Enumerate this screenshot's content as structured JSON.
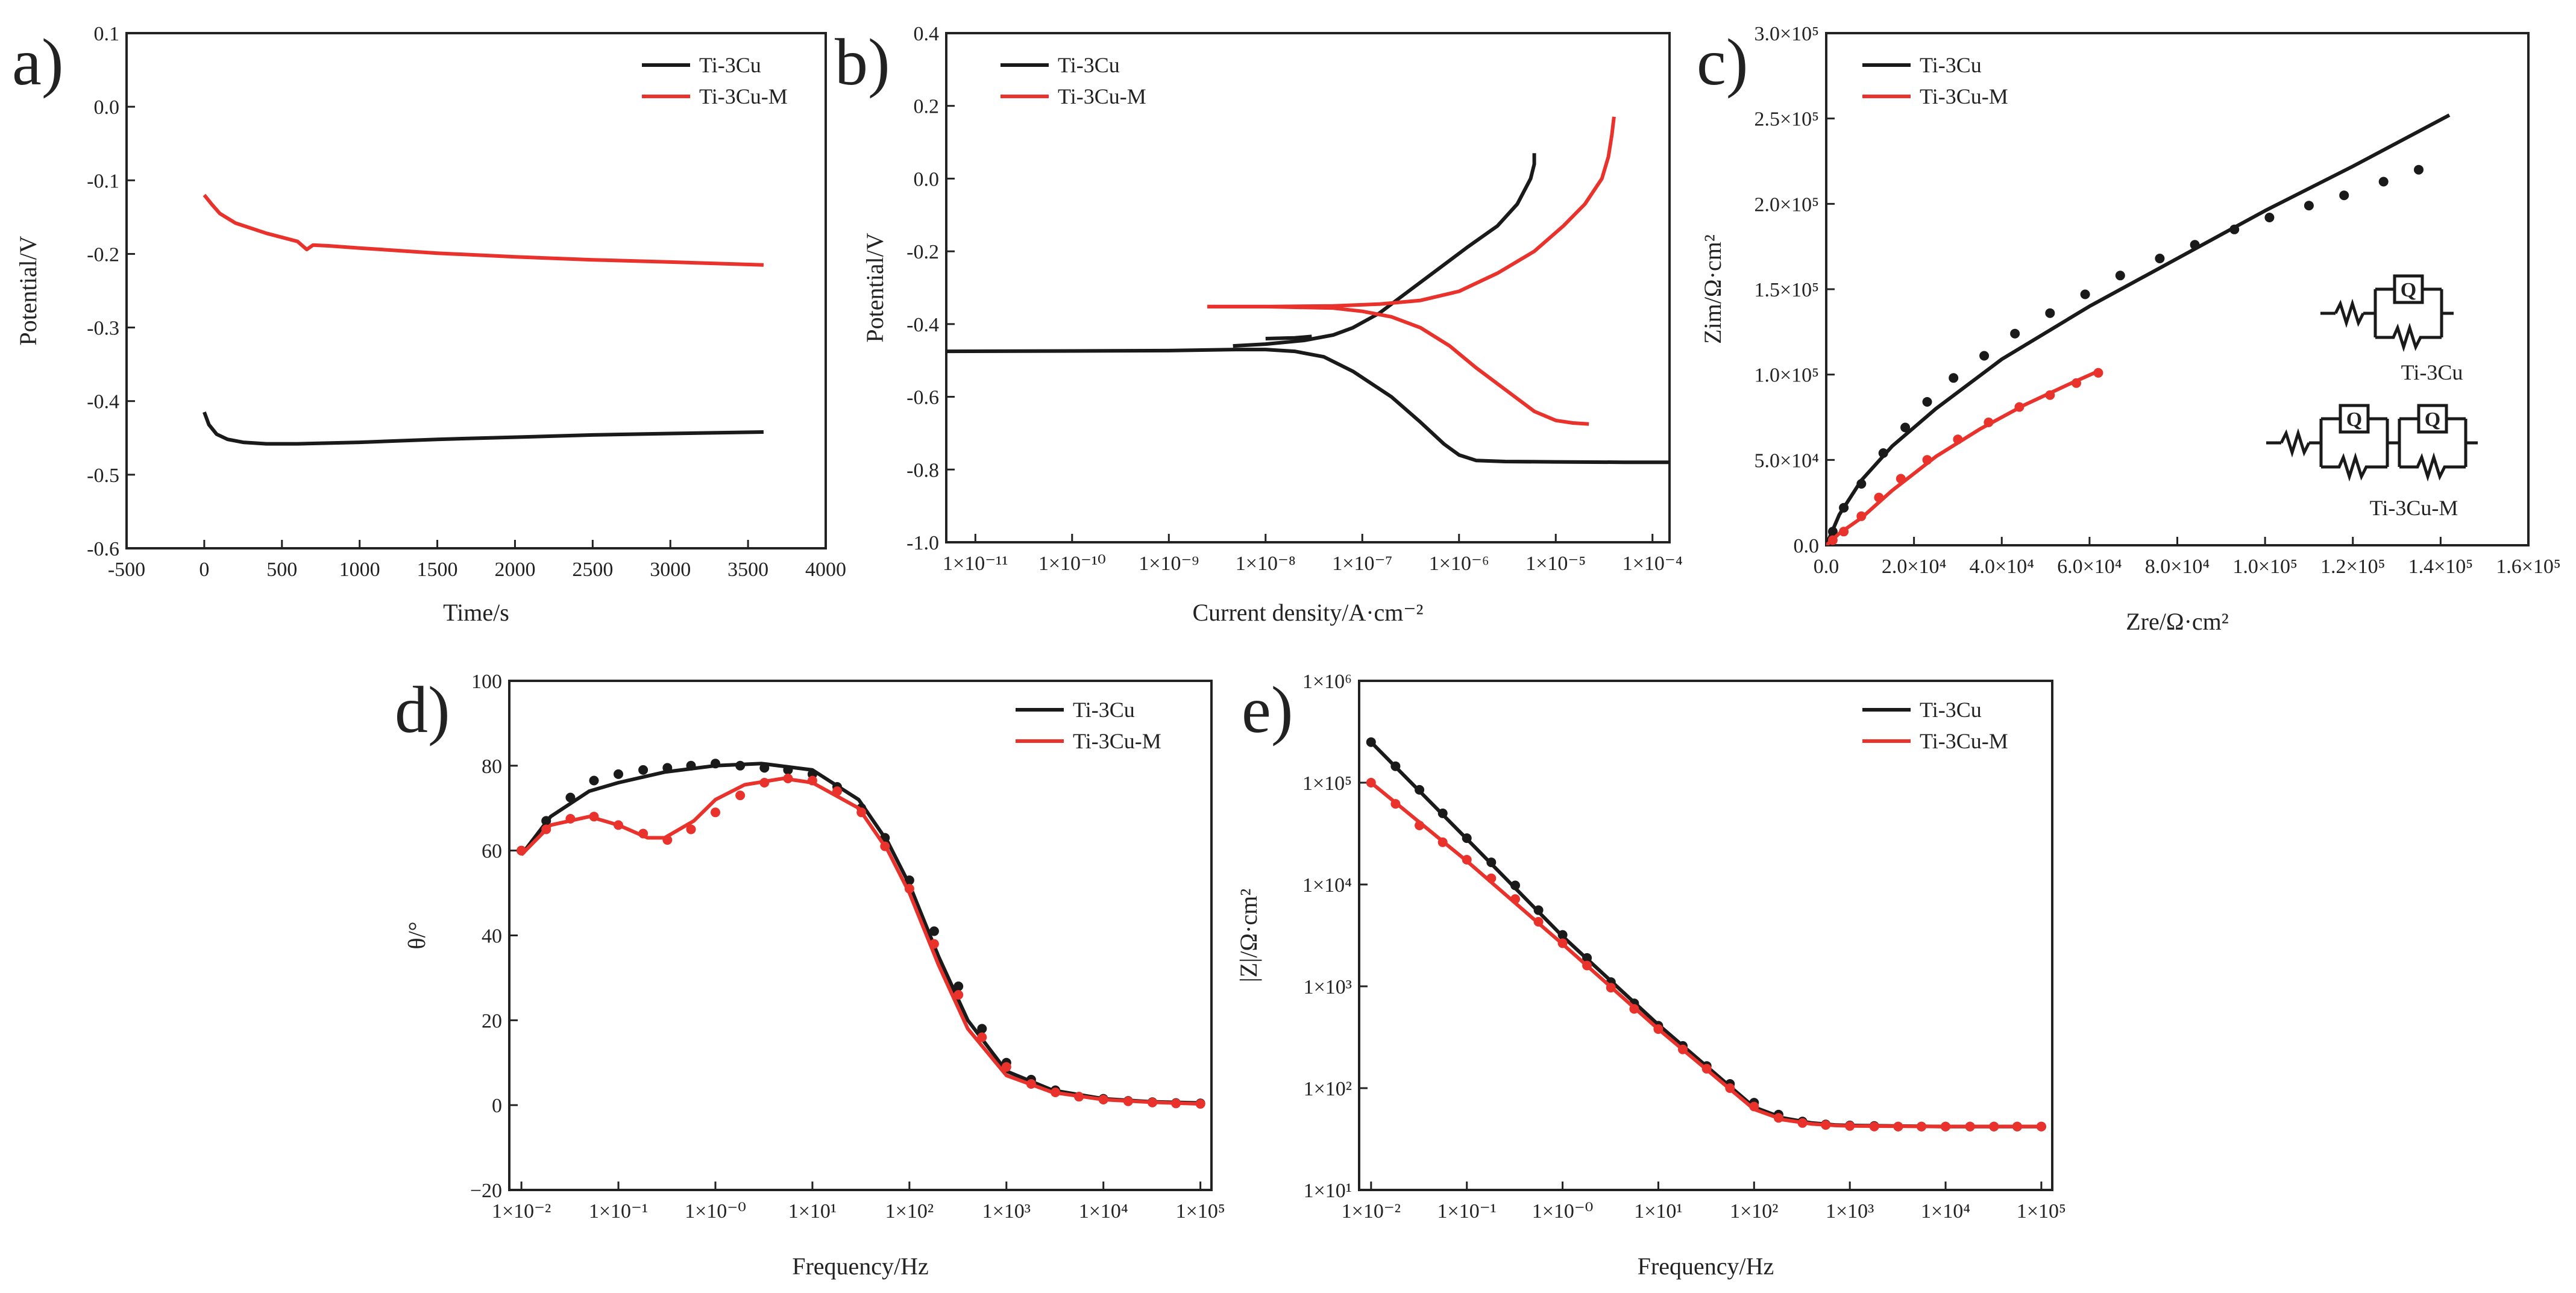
{
  "figure": {
    "colors": {
      "ti3cu": "#1a1a1a",
      "ti3cum": "#e8322b"
    },
    "legend": [
      "Ti-3Cu",
      "Ti-3Cu-M"
    ]
  },
  "chart_data": [
    {
      "id": "a",
      "panel_label": "a)",
      "type": "line",
      "title": "",
      "xlabel": "Time/s",
      "ylabel": "Potential/V",
      "xlim": [
        -500,
        4000
      ],
      "ylim": [
        -0.6,
        0.1
      ],
      "x_ticks": [
        -500,
        0,
        500,
        1000,
        1500,
        2000,
        2500,
        3000,
        3500,
        4000
      ],
      "x_tick_labels": [
        "-500",
        "0",
        "500",
        "1000",
        "1500",
        "2000",
        "2500",
        "3000",
        "3500",
        "4000"
      ],
      "y_ticks": [
        -0.6,
        -0.5,
        -0.4,
        -0.3,
        -0.2,
        -0.1,
        0.0,
        0.1
      ],
      "y_tick_labels": [
        "-0.6",
        "-0.5",
        "-0.4",
        "-0.3",
        "-0.2",
        "-0.1",
        "0.0",
        "0.1"
      ],
      "legend_position": "top-right",
      "series": [
        {
          "name": "Ti-3Cu",
          "style": "line",
          "x": [
            0,
            30,
            80,
            150,
            250,
            400,
            600,
            1000,
            1500,
            2000,
            2500,
            3000,
            3600
          ],
          "y": [
            -0.415,
            -0.432,
            -0.445,
            -0.452,
            -0.456,
            -0.458,
            -0.458,
            -0.456,
            -0.452,
            -0.449,
            -0.446,
            -0.444,
            -0.442
          ]
        },
        {
          "name": "Ti-3Cu-M",
          "style": "line",
          "x": [
            0,
            50,
            100,
            200,
            400,
            600,
            660,
            700,
            800,
            1000,
            1500,
            2000,
            2500,
            3000,
            3600
          ],
          "y": [
            -0.12,
            -0.133,
            -0.145,
            -0.158,
            -0.172,
            -0.183,
            -0.194,
            -0.188,
            -0.189,
            -0.192,
            -0.199,
            -0.204,
            -0.208,
            -0.211,
            -0.215
          ]
        }
      ]
    },
    {
      "id": "b",
      "panel_label": "b)",
      "type": "line",
      "title": "",
      "xlabel": "Current density/A·cm⁻²",
      "ylabel": "Potential/V",
      "x_scale": "log",
      "xlim": [
        5e-12,
        0.00015
      ],
      "ylim": [
        -1.0,
        0.4
      ],
      "x_ticks": [
        1e-11,
        1e-10,
        1e-09,
        1e-08,
        1e-07,
        1e-06,
        1e-05,
        0.0001
      ],
      "x_tick_labels": [
        "1×10⁻¹¹",
        "1×10⁻¹⁰",
        "1×10⁻⁹",
        "1×10⁻⁸",
        "1×10⁻⁷",
        "1×10⁻⁶",
        "1×10⁻⁵",
        "1×10⁻⁴"
      ],
      "y_ticks": [
        -1.0,
        -0.8,
        -0.6,
        -0.4,
        -0.2,
        0.0,
        0.2,
        0.4
      ],
      "y_tick_labels": [
        "-1.0",
        "-0.8",
        "-0.6",
        "-0.4",
        "-0.2",
        "0.0",
        "0.2",
        "0.4"
      ],
      "legend_position": "top-left",
      "series": [
        {
          "name": "Ti-3Cu",
          "style": "line",
          "x": [
            5e-12,
            1e-10,
            1e-09,
            5e-09,
            1e-08,
            2e-08,
            4e-08,
            8e-08,
            2e-07,
            4e-07,
            7e-07,
            1e-06,
            1.5e-06,
            3e-06,
            1e-05,
            5e-05,
            0.00015
          ],
          "y": [
            -0.475,
            -0.474,
            -0.473,
            -0.47,
            -0.47,
            -0.475,
            -0.49,
            -0.53,
            -0.6,
            -0.67,
            -0.73,
            -0.76,
            -0.775,
            -0.778,
            -0.779,
            -0.78,
            -0.78
          ]
        },
        {
          "name": "Ti-3Cu",
          "style": "line",
          "x": [
            4.6e-09,
            1e-08,
            2.5e-08,
            5e-08,
            8e-08,
            1.5e-07,
            3e-07,
            6e-07,
            1.2e-06,
            2.5e-06,
            4e-06,
            5.5e-06,
            6e-06,
            6e-06
          ],
          "y": [
            -0.46,
            -0.455,
            -0.445,
            -0.43,
            -0.41,
            -0.37,
            -0.31,
            -0.25,
            -0.19,
            -0.13,
            -0.07,
            0.0,
            0.04,
            0.07
          ]
        },
        {
          "name": "Ti-3Cu",
          "style": "line",
          "x": [
            1e-08,
            2e-08,
            3e-08
          ],
          "y": [
            -0.44,
            -0.438,
            -0.434
          ]
        },
        {
          "name": "Ti-3Cu-M",
          "style": "line",
          "x": [
            2.5e-09,
            1e-08,
            5e-08,
            1e-07,
            2e-07,
            4e-07,
            8e-07,
            1.5e-06,
            3e-06,
            6e-06,
            1e-05,
            1.5e-05,
            2.2e-05
          ],
          "y": [
            -0.352,
            -0.352,
            -0.356,
            -0.365,
            -0.38,
            -0.41,
            -0.46,
            -0.52,
            -0.58,
            -0.64,
            -0.665,
            -0.672,
            -0.675
          ]
        },
        {
          "name": "Ti-3Cu-M",
          "style": "line",
          "x": [
            2.5e-09,
            1e-08,
            5e-08,
            1.5e-07,
            4e-07,
            1e-06,
            2.5e-06,
            6e-06,
            1.2e-05,
            2e-05,
            3e-05,
            3.5e-05,
            3.8e-05,
            4e-05
          ],
          "y": [
            -0.352,
            -0.352,
            -0.35,
            -0.345,
            -0.335,
            -0.31,
            -0.26,
            -0.2,
            -0.13,
            -0.07,
            0.0,
            0.06,
            0.12,
            0.17
          ]
        }
      ]
    },
    {
      "id": "c",
      "panel_label": "c)",
      "type": "line",
      "title": "",
      "xlabel": "Zre/Ω·cm²",
      "ylabel": "Zim/Ω·cm²",
      "xlim": [
        0,
        160000
      ],
      "ylim": [
        0,
        300000
      ],
      "x_ticks": [
        0,
        20000,
        40000,
        60000,
        80000,
        100000,
        120000,
        140000,
        160000
      ],
      "x_tick_labels": [
        "0.0",
        "2.0×10⁴",
        "4.0×10⁴",
        "6.0×10⁴",
        "8.0×10⁴",
        "1.0×10⁵",
        "1.2×10⁵",
        "1.4×10⁵",
        "1.6×10⁵"
      ],
      "y_ticks": [
        0,
        50000,
        100000,
        150000,
        200000,
        250000,
        300000
      ],
      "y_tick_labels": [
        "0.0",
        "5.0×10⁴",
        "1.0×10⁵",
        "1.5×10⁵",
        "2.0×10⁵",
        "2.5×10⁵",
        "3.0×10⁵"
      ],
      "legend_position": "top-left",
      "equivalent_circuits": [
        "Ti-3Cu",
        "Ti-3Cu-M"
      ],
      "series": [
        {
          "name": "Ti-3Cu",
          "style": "line",
          "x": [
            0,
            3000,
            8000,
            15000,
            25000,
            40000,
            60000,
            80000,
            100000,
            120000,
            142000
          ],
          "y": [
            0,
            18000,
            38000,
            58000,
            80000,
            109000,
            140000,
            168000,
            196000,
            222000,
            252000
          ]
        },
        {
          "name": "Ti-3Cu",
          "style": "markers",
          "x": [
            1500,
            4000,
            8000,
            13000,
            18000,
            23000,
            29000,
            36000,
            43000,
            51000,
            59000,
            67000,
            76000,
            84000,
            93000,
            101000,
            110000,
            118000,
            127000,
            135000
          ],
          "y": [
            8000,
            22000,
            36000,
            54000,
            69000,
            84000,
            98000,
            111000,
            124000,
            136000,
            147000,
            158000,
            168000,
            176000,
            185000,
            192000,
            199000,
            205000,
            213000,
            220000
          ]
        },
        {
          "name": "Ti-3Cu-M",
          "style": "line",
          "x": [
            0,
            3000,
            8000,
            15000,
            25000,
            35000,
            45000,
            55000,
            62000
          ],
          "y": [
            0,
            7000,
            16000,
            32000,
            52000,
            68000,
            82000,
            94000,
            102000
          ]
        },
        {
          "name": "Ti-3Cu-M",
          "style": "markers",
          "x": [
            1500,
            4000,
            8000,
            12000,
            17000,
            23000,
            30000,
            37000,
            44000,
            51000,
            57000,
            62000
          ],
          "y": [
            3000,
            8000,
            17000,
            28000,
            39000,
            50000,
            62000,
            72000,
            81000,
            88000,
            95000,
            101000
          ]
        }
      ]
    },
    {
      "id": "d",
      "panel_label": "d)",
      "type": "line",
      "title": "",
      "xlabel": "Frequency/Hz",
      "ylabel": "θ/°",
      "x_scale": "log",
      "xlim": [
        0.0075,
        130000
      ],
      "ylim": [
        -20,
        100
      ],
      "x_ticks": [
        0.01,
        0.1,
        1,
        10,
        100,
        1000,
        10000,
        100000
      ],
      "x_tick_labels": [
        "1×10⁻²",
        "1×10⁻¹",
        "1×10⁻⁰",
        "1×10¹",
        "1×10²",
        "1×10³",
        "1×10⁴",
        "1×10⁵"
      ],
      "y_ticks": [
        -20,
        0,
        20,
        40,
        60,
        80,
        100
      ],
      "y_tick_labels": [
        "−20",
        "0",
        "20",
        "40",
        "60",
        "80",
        "100"
      ],
      "legend_position": "top-right",
      "series": [
        {
          "name": "Ti-3Cu",
          "style": "line",
          "x": [
            0.01,
            0.02,
            0.05,
            0.1,
            0.3,
            1,
            3,
            10,
            30,
            60,
            100,
            200,
            400,
            1000,
            3000,
            10000,
            30000,
            100000
          ],
          "y": [
            59,
            68,
            74,
            76,
            78.5,
            80,
            80.5,
            79,
            72,
            62,
            52,
            35,
            20,
            8,
            3.5,
            1.5,
            0.8,
            0.5
          ]
        },
        {
          "name": "Ti-3Cu",
          "style": "markers",
          "x": [
            0.01,
            0.018,
            0.032,
            0.056,
            0.1,
            0.18,
            0.32,
            0.56,
            1,
            1.8,
            3.2,
            5.6,
            10,
            18,
            32,
            56,
            100,
            180,
            320,
            560,
            1000,
            1800,
            3200,
            5600,
            10000,
            18000,
            32000,
            56000,
            100000
          ],
          "y": [
            60,
            67,
            72.5,
            76.5,
            78,
            79,
            79.5,
            80,
            80.5,
            80,
            79.5,
            79,
            78,
            75,
            70,
            63,
            53,
            41,
            28,
            18,
            10,
            6,
            3.5,
            2,
            1.5,
            1,
            0.7,
            0.5,
            0.4
          ]
        },
        {
          "name": "Ti-3Cu-M",
          "style": "line",
          "x": [
            0.01,
            0.02,
            0.05,
            0.1,
            0.2,
            0.3,
            0.6,
            1,
            2,
            5,
            10,
            30,
            60,
            100,
            200,
            400,
            1000,
            3000,
            10000,
            30000,
            100000
          ],
          "y": [
            59,
            66,
            68,
            66,
            63,
            63,
            67,
            72,
            75.5,
            77,
            76,
            70,
            60,
            50,
            33,
            18,
            7,
            3,
            1.3,
            0.7,
            0.3
          ]
        },
        {
          "name": "Ti-3Cu-M",
          "style": "markers",
          "x": [
            0.01,
            0.018,
            0.032,
            0.056,
            0.1,
            0.18,
            0.32,
            0.56,
            1,
            1.8,
            3.2,
            5.6,
            10,
            18,
            32,
            56,
            100,
            180,
            320,
            560,
            1000,
            1800,
            3200,
            5600,
            10000,
            18000,
            32000,
            56000,
            100000
          ],
          "y": [
            60,
            65,
            67.5,
            68,
            66,
            64,
            62.5,
            65,
            69,
            73,
            76,
            77,
            76.5,
            74,
            69,
            61,
            51,
            38,
            26,
            16,
            9,
            5,
            3,
            2,
            1.3,
            0.9,
            0.6,
            0.4,
            0.3
          ]
        }
      ]
    },
    {
      "id": "e",
      "panel_label": "e)",
      "type": "line",
      "title": "",
      "xlabel": "Frequency/Hz",
      "ylabel": "|Z|/Ω·cm²",
      "x_scale": "log",
      "y_scale": "log",
      "xlim": [
        0.0075,
        130000
      ],
      "ylim": [
        10,
        1000000
      ],
      "x_ticks": [
        0.01,
        0.1,
        1,
        10,
        100,
        1000,
        10000,
        100000
      ],
      "x_tick_labels": [
        "1×10⁻²",
        "1×10⁻¹",
        "1×10⁻⁰",
        "1×10¹",
        "1×10²",
        "1×10³",
        "1×10⁴",
        "1×10⁵"
      ],
      "y_ticks": [
        10,
        100,
        1000,
        10000,
        100000,
        1000000
      ],
      "y_tick_labels": [
        "1×10¹",
        "1×10²",
        "1×10³",
        "1×10⁴",
        "1×10⁵",
        "1×10⁶"
      ],
      "legend_position": "top-right",
      "series": [
        {
          "name": "Ti-3Cu",
          "style": "line",
          "x": [
            0.01,
            0.1,
            1,
            10,
            100,
            200,
            400,
            700,
            1000,
            10000,
            100000
          ],
          "y": [
            250000,
            28000,
            3100,
            420,
            65,
            51,
            45.5,
            43.5,
            43,
            42,
            42
          ]
        },
        {
          "name": "Ti-3Cu",
          "style": "markers",
          "x": [
            0.01,
            0.018,
            0.032,
            0.056,
            0.1,
            0.18,
            0.32,
            0.56,
            1,
            1.8,
            3.2,
            5.6,
            10,
            18,
            32,
            56,
            100,
            180,
            320,
            560,
            1000,
            1800,
            3200,
            5600,
            10000,
            18000,
            32000,
            56000,
            100000
          ],
          "y": [
            250000,
            145000,
            85000,
            50000,
            28500,
            16500,
            9800,
            5600,
            3200,
            1900,
            1100,
            680,
            410,
            260,
            165,
            110,
            72,
            55,
            47,
            44,
            43,
            42.5,
            42,
            42,
            42,
            42,
            42,
            42,
            42
          ]
        },
        {
          "name": "Ti-3Cu-M",
          "style": "line",
          "x": [
            0.01,
            0.1,
            1,
            10,
            100,
            200,
            400,
            700,
            1000,
            10000,
            100000
          ],
          "y": [
            100000,
            17000,
            2600,
            380,
            62,
            49,
            44.5,
            43,
            42.5,
            42,
            42
          ]
        },
        {
          "name": "Ti-3Cu-M",
          "style": "markers",
          "x": [
            0.01,
            0.018,
            0.032,
            0.056,
            0.1,
            0.18,
            0.32,
            0.56,
            1,
            1.8,
            3.2,
            5.6,
            10,
            18,
            32,
            56,
            100,
            180,
            320,
            560,
            1000,
            1800,
            3200,
            5600,
            10000,
            18000,
            32000,
            56000,
            100000
          ],
          "y": [
            100000,
            62000,
            38000,
            26000,
            17500,
            11500,
            7200,
            4300,
            2650,
            1600,
            970,
            600,
            380,
            240,
            155,
            100,
            66,
            51,
            45.5,
            43.5,
            42.5,
            42,
            42,
            42,
            42,
            42,
            42,
            42,
            42
          ]
        }
      ]
    }
  ]
}
